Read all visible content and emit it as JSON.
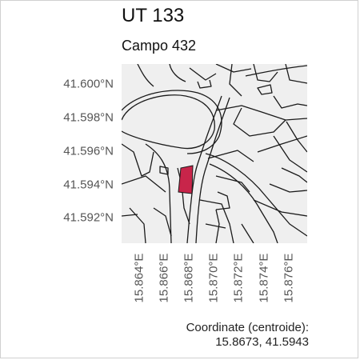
{
  "title": "UT 133",
  "subtitle": "Campo 432",
  "map": {
    "y_ticks": [
      "41.600°N",
      "41.598°N",
      "41.596°N",
      "41.594°N",
      "41.592°N"
    ],
    "x_ticks": [
      "15.864°E",
      "15.866°E",
      "15.868°E",
      "15.870°E",
      "15.872°E",
      "15.874°E",
      "15.876°E"
    ],
    "highlight_color": "#c8254a",
    "background_color": "#efefef",
    "line_color": "#1a1a1a"
  },
  "footer": {
    "label": "Coordinate (centroide):",
    "value": "15.8673, 41.5943"
  }
}
